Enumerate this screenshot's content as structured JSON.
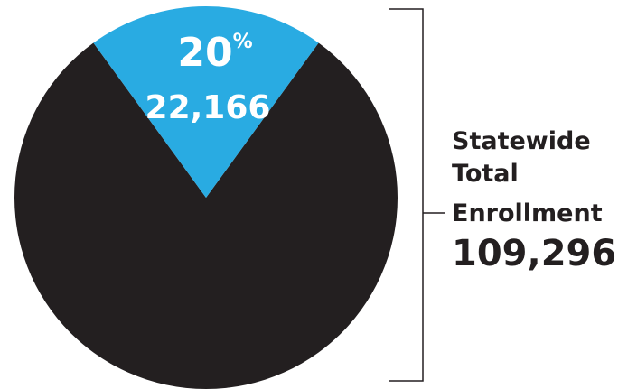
{
  "chart_data": {
    "type": "pie",
    "slices": [
      {
        "value_pct": 20,
        "value_count": 22166,
        "color": "#29abe2"
      },
      {
        "value_pct": 80,
        "value_count": 87130,
        "color": "#231f20"
      }
    ],
    "labels": {
      "highlight_pct": "20",
      "highlight_pct_symbol": "%",
      "highlight_count": "22,166"
    },
    "annotation": {
      "title_lines": [
        "Statewide",
        "Total",
        "Enrollment"
      ],
      "total": "109,296"
    },
    "colors": {
      "highlight": "#29abe2",
      "remainder": "#231f20",
      "text_light": "#ffffff",
      "text_dark": "#231f20",
      "bracket": "#231f20"
    }
  }
}
